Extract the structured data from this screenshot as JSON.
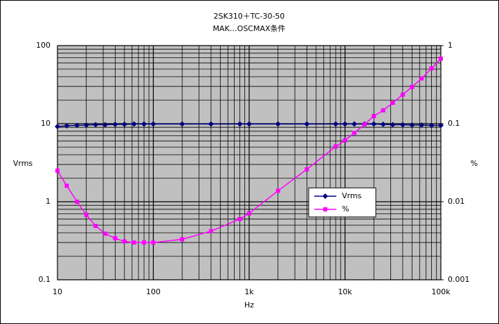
{
  "chart_data": {
    "type": "line",
    "title": "2SK310＋TC-30-50",
    "subtitle": "MAK…OSCMAX条件",
    "x_label": "Hz",
    "y_label": "Vrms",
    "y2_label": "%",
    "x": [
      10,
      12.5,
      16,
      20,
      25,
      31.5,
      40,
      50,
      63,
      80,
      100,
      200,
      400,
      800,
      1000,
      2000,
      4000,
      8000,
      10000,
      12500,
      16000,
      20000,
      25000,
      31500,
      40000,
      50000,
      63000,
      80000,
      100000
    ],
    "series": [
      {
        "name": "Vrms",
        "color": "#000080",
        "marker": "diamond",
        "values": [
          9.2,
          9.4,
          9.5,
          9.6,
          9.7,
          9.7,
          9.8,
          9.8,
          9.9,
          9.9,
          9.9,
          9.9,
          9.9,
          9.9,
          9.9,
          9.9,
          9.9,
          9.9,
          9.9,
          9.9,
          9.9,
          9.9,
          9.8,
          9.7,
          9.7,
          9.6,
          9.6,
          9.5,
          9.5
        ]
      },
      {
        "name": "%",
        "color": "#ff00ff",
        "marker": "square",
        "axis": "y2",
        "values": [
          0.025,
          0.016,
          0.01,
          0.0068,
          0.0049,
          0.0039,
          0.0034,
          0.0031,
          0.003,
          0.003,
          0.003,
          0.0033,
          0.0042,
          0.006,
          0.0071,
          0.0138,
          0.026,
          0.051,
          0.061,
          0.076,
          0.098,
          0.125,
          0.148,
          0.185,
          0.235,
          0.295,
          0.38,
          0.51,
          0.68
        ]
      }
    ],
    "log_x": true,
    "log_y": true,
    "grid": true,
    "minor_grid": true,
    "xlim": [
      10,
      100000
    ],
    "xticks": [
      10,
      100,
      {
        "value": 1000,
        "label": "1k"
      },
      {
        "value": 10000,
        "label": "10k"
      },
      {
        "value": 100000,
        "label": "100k"
      }
    ],
    "ylim": [
      0.1,
      100
    ],
    "yticks": [
      0.1,
      1,
      10,
      100
    ],
    "y2lim": [
      0.001,
      1
    ],
    "y2ticks": [
      0.001,
      0.01,
      0.1,
      1
    ],
    "plot_background": "#c0c0c0",
    "legend": "right"
  }
}
